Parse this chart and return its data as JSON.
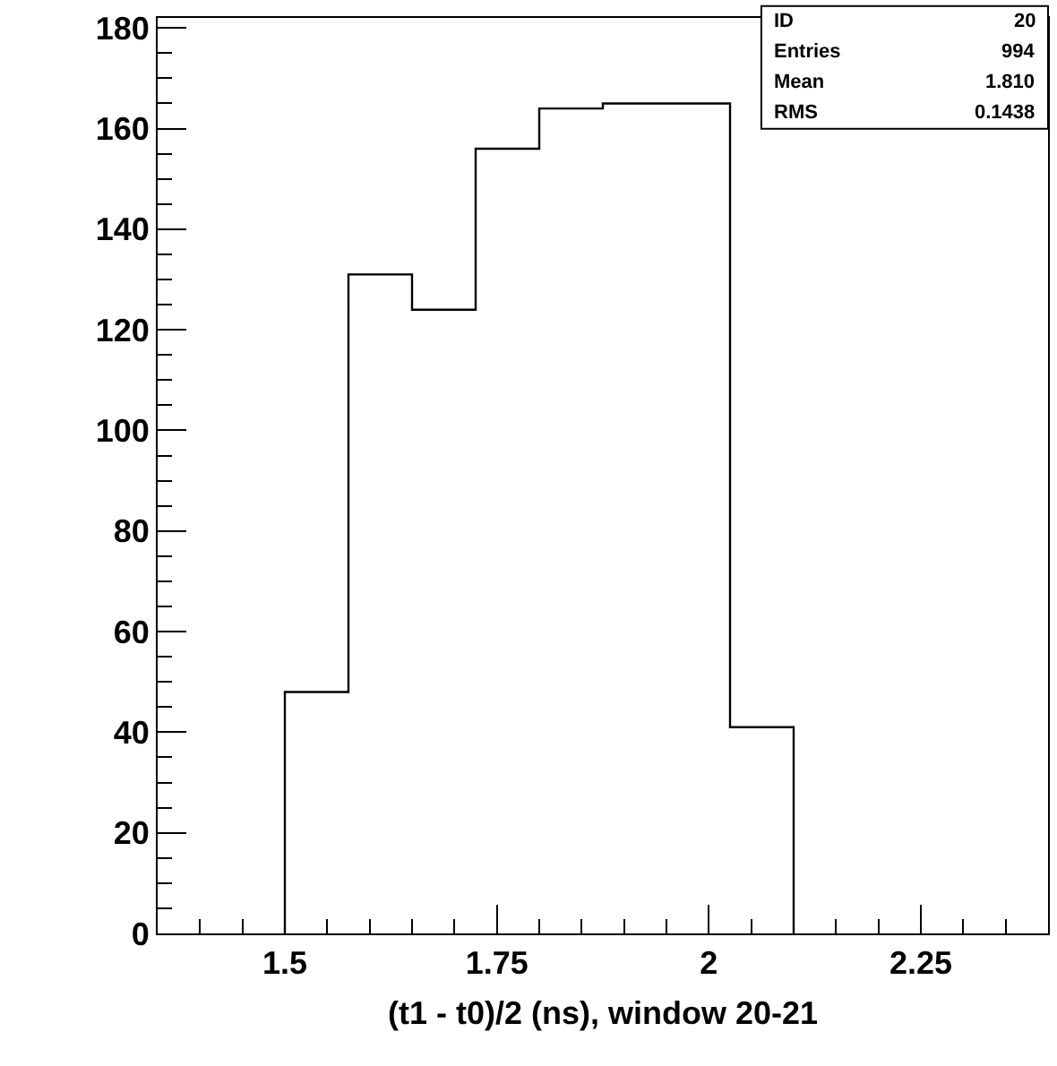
{
  "chart_data": {
    "type": "histogram",
    "xlabel": "(t1 - t0)/2 (ns), window 20-21",
    "bins": [
      1.5,
      1.575,
      1.65,
      1.725,
      1.8,
      1.875,
      1.95,
      2.025,
      2.1
    ],
    "values": [
      48,
      131,
      124,
      156,
      164,
      165,
      165,
      41
    ],
    "color": "#000000",
    "xlim": [
      1.35,
      2.4
    ],
    "xticks": [
      1.5,
      1.75,
      2,
      2.25,
      {
        "value": 1.4,
        "label": null
      },
      {
        "value": 1.45,
        "label": null
      },
      {
        "value": 1.55,
        "label": null
      },
      {
        "value": 1.6,
        "label": null
      },
      {
        "value": 1.65,
        "label": null
      },
      {
        "value": 1.7,
        "label": null
      },
      {
        "value": 1.8,
        "label": null
      },
      {
        "value": 1.85,
        "label": null
      },
      {
        "value": 1.9,
        "label": null
      },
      {
        "value": 1.95,
        "label": null
      },
      {
        "value": 2.05,
        "label": null
      },
      {
        "value": 2.1,
        "label": null
      },
      {
        "value": 2.15,
        "label": null
      },
      {
        "value": 2.2,
        "label": null
      },
      {
        "value": 2.3,
        "label": null
      },
      {
        "value": 2.35,
        "label": null
      }
    ],
    "ylim": [
      0,
      182
    ],
    "yticks": [
      0,
      20,
      40,
      60,
      80,
      100,
      120,
      140,
      160,
      180,
      {
        "value": 5,
        "label": null
      },
      {
        "value": 10,
        "label": null
      },
      {
        "value": 15,
        "label": null
      },
      {
        "value": 25,
        "label": null
      },
      {
        "value": 30,
        "label": null
      },
      {
        "value": 35,
        "label": null
      },
      {
        "value": 45,
        "label": null
      },
      {
        "value": 50,
        "label": null
      },
      {
        "value": 55,
        "label": null
      },
      {
        "value": 65,
        "label": null
      },
      {
        "value": 70,
        "label": null
      },
      {
        "value": 75,
        "label": null
      },
      {
        "value": 85,
        "label": null
      },
      {
        "value": 90,
        "label": null
      },
      {
        "value": 95,
        "label": null
      },
      {
        "value": 105,
        "label": null
      },
      {
        "value": 110,
        "label": null
      },
      {
        "value": 115,
        "label": null
      },
      {
        "value": 125,
        "label": null
      },
      {
        "value": 130,
        "label": null
      },
      {
        "value": 135,
        "label": null
      },
      {
        "value": 145,
        "label": null
      },
      {
        "value": 150,
        "label": null
      },
      {
        "value": 155,
        "label": null
      },
      {
        "value": 165,
        "label": null
      },
      {
        "value": 170,
        "label": null
      },
      {
        "value": 175,
        "label": null
      }
    ],
    "annotations": [
      "ID",
      "20",
      "Entries",
      "994",
      "Mean",
      "1.810",
      "RMS",
      "0.1438"
    ]
  }
}
